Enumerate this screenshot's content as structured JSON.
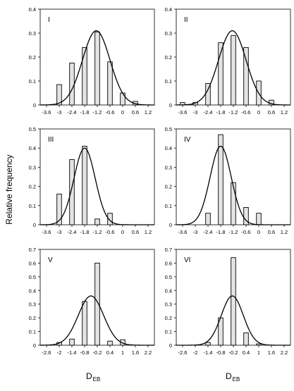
{
  "figure": {
    "ylabel": "Relative frequency",
    "xlabel_main": "D",
    "xlabel_sub": "EB"
  },
  "chart_data": [
    {
      "type": "bar",
      "panel_label": "I",
      "xlim": [
        -3.9,
        1.5
      ],
      "ylim": [
        0,
        0.4
      ],
      "xticks": [
        "-3.6",
        "-3",
        "-2.4",
        "-1.8",
        "-1.2",
        "-0.6",
        "0",
        "0.6",
        "1.2"
      ],
      "yticks": [
        "0",
        "0.1",
        "0.2",
        "0.3",
        "0.4"
      ],
      "bars": [
        {
          "x": -3.0,
          "value": 0.085
        },
        {
          "x": -2.4,
          "value": 0.175
        },
        {
          "x": -1.8,
          "value": 0.24
        },
        {
          "x": -1.2,
          "value": 0.305
        },
        {
          "x": -0.6,
          "value": 0.18
        },
        {
          "x": 0.0,
          "value": 0.05
        },
        {
          "x": 0.6,
          "value": 0.015
        }
      ],
      "curve": {
        "mean": -1.25,
        "sd": 0.65,
        "peak": 0.31
      }
    },
    {
      "type": "bar",
      "panel_label": "II",
      "xlim": [
        -3.9,
        1.5
      ],
      "ylim": [
        0,
        0.4
      ],
      "xticks": [
        "-3.6",
        "-3",
        "-2.4",
        "-1.8",
        "-1.2",
        "-0.6",
        "0",
        "0.6",
        "1.2"
      ],
      "yticks": [
        "0",
        "0.1",
        "0.2",
        "0.3",
        "0.4"
      ],
      "bars": [
        {
          "x": -3.6,
          "value": 0.01
        },
        {
          "x": -3.0,
          "value": 0.01
        },
        {
          "x": -2.4,
          "value": 0.09
        },
        {
          "x": -1.8,
          "value": 0.26
        },
        {
          "x": -1.2,
          "value": 0.29
        },
        {
          "x": -0.6,
          "value": 0.24
        },
        {
          "x": 0.0,
          "value": 0.1
        },
        {
          "x": 0.6,
          "value": 0.02
        }
      ],
      "curve": {
        "mean": -1.25,
        "sd": 0.65,
        "peak": 0.31
      }
    },
    {
      "type": "bar",
      "panel_label": "III",
      "xlim": [
        -3.9,
        1.5
      ],
      "ylim": [
        0,
        0.5
      ],
      "xticks": [
        "-3.6",
        "-3",
        "-2.4",
        "-1.8",
        "-1.2",
        "-0.6",
        "0",
        "0.6",
        "1.2"
      ],
      "yticks": [
        "0",
        "0.1",
        "0.2",
        "0.3",
        "0.4",
        "0.5"
      ],
      "bars": [
        {
          "x": -3.0,
          "value": 0.16
        },
        {
          "x": -2.4,
          "value": 0.34
        },
        {
          "x": -1.8,
          "value": 0.41
        },
        {
          "x": -1.2,
          "value": 0.03
        },
        {
          "x": -0.6,
          "value": 0.06
        }
      ],
      "curve": {
        "mean": -1.8,
        "sd": 0.5,
        "peak": 0.4
      }
    },
    {
      "type": "bar",
      "panel_label": "IV",
      "xlim": [
        -3.9,
        1.5
      ],
      "ylim": [
        0,
        0.5
      ],
      "xticks": [
        "-3.6",
        "-3",
        "-2.4",
        "-1.8",
        "-1.2",
        "-0.6",
        "0",
        "0.6",
        "1.2"
      ],
      "yticks": [
        "0",
        "0.1",
        "0.2",
        "0.3",
        "0.4",
        "0.5"
      ],
      "bars": [
        {
          "x": -2.4,
          "value": 0.06
        },
        {
          "x": -1.8,
          "value": 0.47
        },
        {
          "x": -1.2,
          "value": 0.22
        },
        {
          "x": -0.6,
          "value": 0.09
        },
        {
          "x": 0.0,
          "value": 0.06
        }
      ],
      "curve": {
        "mean": -1.8,
        "sd": 0.5,
        "peak": 0.41
      }
    },
    {
      "type": "bar",
      "panel_label": "V",
      "xlim": [
        -2.9,
        2.5
      ],
      "ylim": [
        0,
        0.7
      ],
      "xticks": [
        "-2.6",
        "-2",
        "-1.4",
        "-0.8",
        "-0.2",
        "0.4",
        "1",
        "1.6",
        "2.2"
      ],
      "yticks": [
        "0",
        "0.1",
        "0.2",
        "0.3",
        "0.4",
        "0.5",
        "0.6",
        "0.7"
      ],
      "bars": [
        {
          "x": -2.0,
          "value": 0.02
        },
        {
          "x": -1.4,
          "value": 0.045
        },
        {
          "x": -0.8,
          "value": 0.32
        },
        {
          "x": -0.2,
          "value": 0.6
        },
        {
          "x": 0.4,
          "value": 0.03
        },
        {
          "x": 1.0,
          "value": 0.04
        }
      ],
      "curve": {
        "mean": -0.5,
        "sd": 0.6,
        "peak": 0.36
      }
    },
    {
      "type": "bar",
      "panel_label": "VI",
      "xlim": [
        -2.9,
        2.5
      ],
      "ylim": [
        0,
        0.7
      ],
      "xticks": [
        "-2.6",
        "-2",
        "-1.4",
        "-0.8",
        "-0.2",
        "0.4",
        "1",
        "1.6",
        "2.2"
      ],
      "yticks": [
        "0",
        "0.1",
        "0.2",
        "0.3",
        "0.4",
        "0.5",
        "0.6",
        "0.7"
      ],
      "bars": [
        {
          "x": -1.4,
          "value": 0.02
        },
        {
          "x": -0.8,
          "value": 0.2
        },
        {
          "x": -0.2,
          "value": 0.64
        },
        {
          "x": 0.4,
          "value": 0.09
        },
        {
          "x": 1.0,
          "value": 0.01
        }
      ],
      "curve": {
        "mean": -0.25,
        "sd": 0.52,
        "peak": 0.36
      }
    }
  ]
}
